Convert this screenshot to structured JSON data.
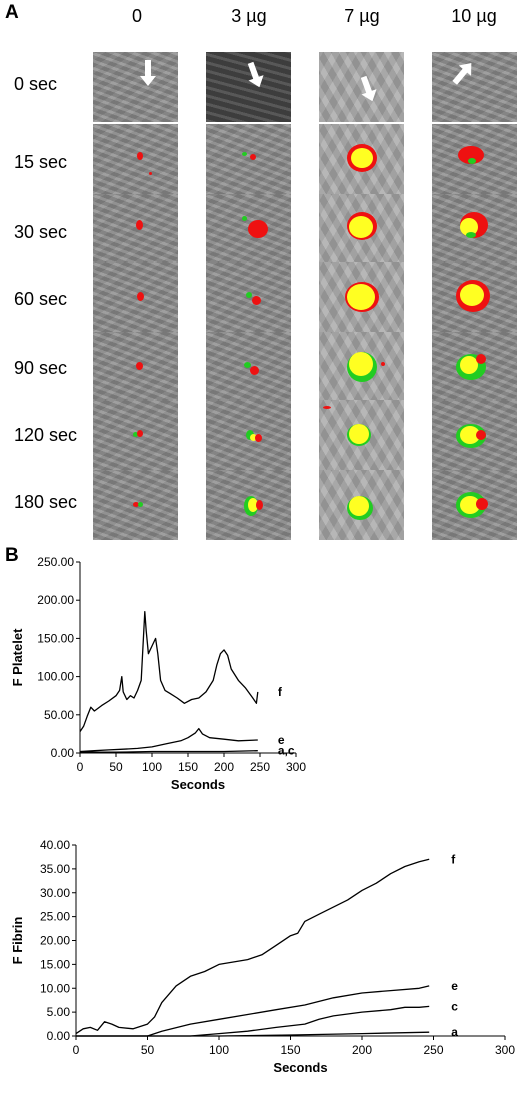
{
  "figure": {
    "panel_a_label": "A",
    "panel_b_label": "B",
    "columns": [
      "0",
      "3 µg",
      "7 µg",
      "10 µg"
    ],
    "rows": [
      "0 sec",
      "15 sec",
      "30 sec",
      "60 sec",
      "90 sec",
      "120 sec",
      "180 sec"
    ]
  },
  "chart_data": [
    {
      "type": "line",
      "ylabel": "F Platelet",
      "xlabel": "Seconds",
      "xlim": [
        0,
        300
      ],
      "ylim": [
        0,
        250
      ],
      "xticks": [
        "0",
        "50",
        "100",
        "150",
        "200",
        "250",
        "300"
      ],
      "yticks": [
        "0.00",
        "50.00",
        "100.00",
        "150.00",
        "200.00",
        "250.00"
      ],
      "series": [
        {
          "name": "f",
          "x": [
            0,
            5,
            10,
            15,
            20,
            30,
            40,
            50,
            55,
            58,
            60,
            65,
            70,
            75,
            80,
            85,
            88,
            90,
            92,
            95,
            100,
            105,
            108,
            112,
            118,
            125,
            135,
            145,
            155,
            165,
            175,
            185,
            190,
            195,
            200,
            205,
            210,
            220,
            230,
            240,
            245,
            247
          ],
          "y": [
            28,
            35,
            48,
            60,
            55,
            62,
            68,
            75,
            82,
            100,
            80,
            70,
            75,
            72,
            82,
            95,
            150,
            185,
            160,
            130,
            140,
            150,
            130,
            95,
            82,
            78,
            72,
            65,
            70,
            72,
            80,
            95,
            115,
            130,
            135,
            128,
            110,
            95,
            85,
            72,
            65,
            80
          ]
        },
        {
          "name": "e",
          "x": [
            0,
            20,
            40,
            60,
            80,
            100,
            120,
            140,
            150,
            160,
            165,
            170,
            180,
            200,
            220,
            247
          ],
          "y": [
            2,
            3,
            4,
            5,
            6,
            8,
            12,
            16,
            20,
            26,
            32,
            25,
            20,
            18,
            16,
            17
          ]
        },
        {
          "name": "a,c",
          "x": [
            0,
            50,
            100,
            150,
            200,
            247
          ],
          "y": [
            1,
            1,
            2,
            2,
            2,
            3
          ]
        }
      ]
    },
    {
      "type": "line",
      "ylabel": "F Fibrin",
      "xlabel": "Seconds",
      "xlim": [
        0,
        300
      ],
      "ylim": [
        0,
        40
      ],
      "xticks": [
        "0",
        "50",
        "100",
        "150",
        "200",
        "250",
        "300"
      ],
      "yticks": [
        "0.00",
        "5.00",
        "10.00",
        "15.00",
        "20.00",
        "25.00",
        "30.00",
        "35.00",
        "40.00"
      ],
      "series": [
        {
          "name": "f",
          "x": [
            0,
            5,
            10,
            15,
            20,
            25,
            30,
            40,
            50,
            55,
            60,
            70,
            80,
            90,
            100,
            110,
            120,
            130,
            140,
            150,
            155,
            160,
            170,
            180,
            190,
            200,
            210,
            220,
            230,
            240,
            247
          ],
          "y": [
            0.5,
            1.5,
            1.8,
            1.2,
            3,
            2.5,
            1.8,
            1.5,
            2.5,
            4,
            7,
            10.5,
            12.5,
            13.5,
            15,
            15.5,
            16,
            17,
            19,
            21,
            21.5,
            24,
            25.5,
            27,
            28.5,
            30.5,
            32,
            34,
            35.5,
            36.5,
            37
          ]
        },
        {
          "name": "e",
          "x": [
            0,
            50,
            60,
            80,
            100,
            120,
            140,
            160,
            180,
            200,
            220,
            240,
            247
          ],
          "y": [
            0,
            0,
            1,
            2.5,
            3.5,
            4.5,
            5.5,
            6.5,
            8,
            9,
            9.5,
            10,
            10.5
          ]
        },
        {
          "name": "c",
          "x": [
            0,
            80,
            100,
            120,
            140,
            160,
            170,
            180,
            200,
            220,
            230,
            240,
            247
          ],
          "y": [
            0,
            0,
            0.5,
            1,
            1.8,
            2.5,
            3.5,
            4.2,
            5,
            5.5,
            6,
            6,
            6.2
          ]
        },
        {
          "name": "a",
          "x": [
            0,
            100,
            150,
            200,
            247
          ],
          "y": [
            0,
            0,
            0.2,
            0.5,
            0.8
          ]
        }
      ]
    }
  ]
}
